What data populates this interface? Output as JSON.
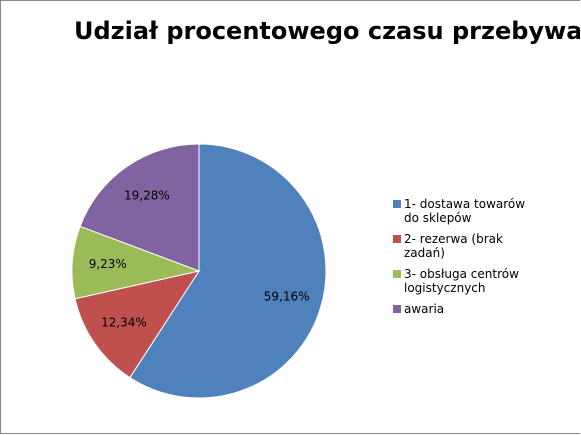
{
  "chart_data": {
    "type": "pie",
    "title": "Udział procentowego czasu przebywania",
    "categories": [
      "1- dostawa towarów\ndo sklepów",
      "2- rezerwa (brak\nzadań)",
      "3- obsługa centrów\nlogistycznych",
      "awaria"
    ],
    "values": [
      59.16,
      12.34,
      9.23,
      19.28
    ],
    "labels": [
      "59,16%",
      "12,34%",
      "9,23%",
      "19,28%"
    ],
    "colors": [
      "#4F81BD",
      "#C0504D",
      "#9BBB59",
      "#8064A2"
    ],
    "legend": "right"
  }
}
